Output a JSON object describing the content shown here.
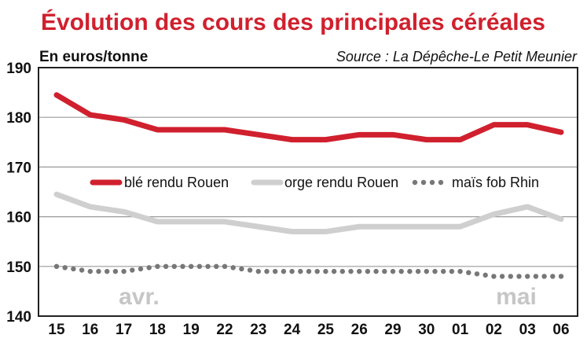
{
  "chart_data": {
    "type": "line",
    "title": "Évolution des cours des principales céréales",
    "ylabel": "En euros/tonne",
    "source": "Source : La Dépêche-Le Petit Meunier",
    "categories": [
      "15",
      "16",
      "17",
      "18",
      "19",
      "22",
      "23",
      "24",
      "25",
      "26",
      "29",
      "30",
      "01",
      "02",
      "03",
      "06"
    ],
    "ylim": [
      140,
      190
    ],
    "yticks": [
      "140",
      "150",
      "160",
      "170",
      "180",
      "190"
    ],
    "grid": true,
    "legend_position": "center",
    "month_labels": [
      "avr.",
      "mai"
    ],
    "series": [
      {
        "name": "blé rendu Rouen",
        "color": "#d0202e",
        "style": "solid",
        "values": [
          184.5,
          180.5,
          179.5,
          177.5,
          177.5,
          177.5,
          176.5,
          175.5,
          175.5,
          176.5,
          176.5,
          175.5,
          175.5,
          178.5,
          178.5,
          177
        ]
      },
      {
        "name": "orge rendu Rouen",
        "color": "#cfcfcf",
        "style": "solid",
        "values": [
          164.5,
          162,
          161,
          159,
          159,
          159,
          158,
          157,
          157,
          158,
          158,
          158,
          158,
          160.5,
          162,
          159.5
        ]
      },
      {
        "name": "maïs fob Rhin",
        "color": "#777777",
        "style": "dotted",
        "values": [
          150,
          149,
          149,
          150,
          150,
          150,
          149,
          149,
          149,
          149,
          149,
          149,
          149,
          148,
          148,
          148
        ]
      }
    ]
  }
}
